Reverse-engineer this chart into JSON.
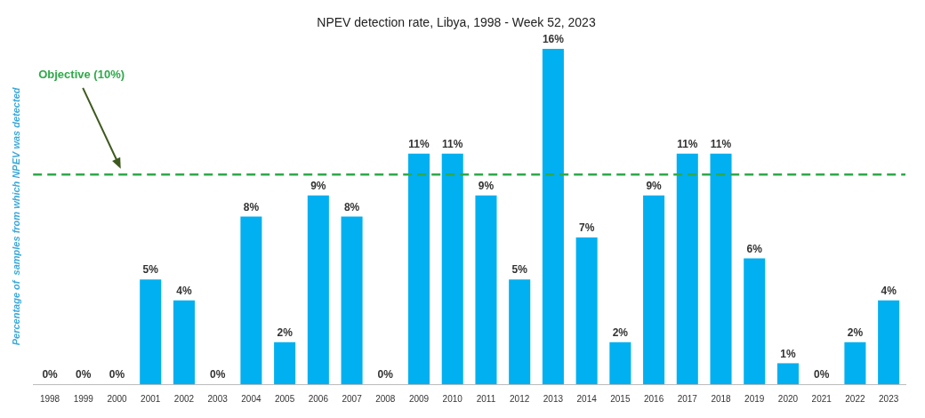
{
  "chart_data": {
    "type": "bar",
    "title": "NPEV detection rate, Libya, 1998 - Week 52, 2023",
    "ylabel": "Percentage of  samples from which NPEV was detected",
    "categories": [
      "1998",
      "1999",
      "2000",
      "2001",
      "2002",
      "2003",
      "2004",
      "2005",
      "2006",
      "2007",
      "2008",
      "2009",
      "2010",
      "2011",
      "2012",
      "2013",
      "2014",
      "2015",
      "2016",
      "2017",
      "2018",
      "2019",
      "2020",
      "2021",
      "2022",
      "2023"
    ],
    "values": [
      0,
      0,
      0,
      5,
      4,
      0,
      8,
      2,
      9,
      8,
      0,
      11,
      11,
      9,
      5,
      16,
      7,
      2,
      9,
      11,
      11,
      6,
      1,
      0,
      2,
      4
    ],
    "value_labels": [
      "0%",
      "0%",
      "0%",
      "5%",
      "4%",
      "0%",
      "8%",
      "2%",
      "9%",
      "8%",
      "0%",
      "11%",
      "11%",
      "9%",
      "5%",
      "16%",
      "7%",
      "2%",
      "9%",
      "11%",
      "11%",
      "6%",
      "1%",
      "0%",
      "2%",
      "4%"
    ],
    "color": "#00b0f0",
    "ref_lines": [
      {
        "axis": "y",
        "value": 10,
        "label": "Objective (10%)",
        "color": "#2eaa4a",
        "line_style": "dashed"
      }
    ],
    "tick_labels": "x",
    "grid": false,
    "legend": false
  }
}
